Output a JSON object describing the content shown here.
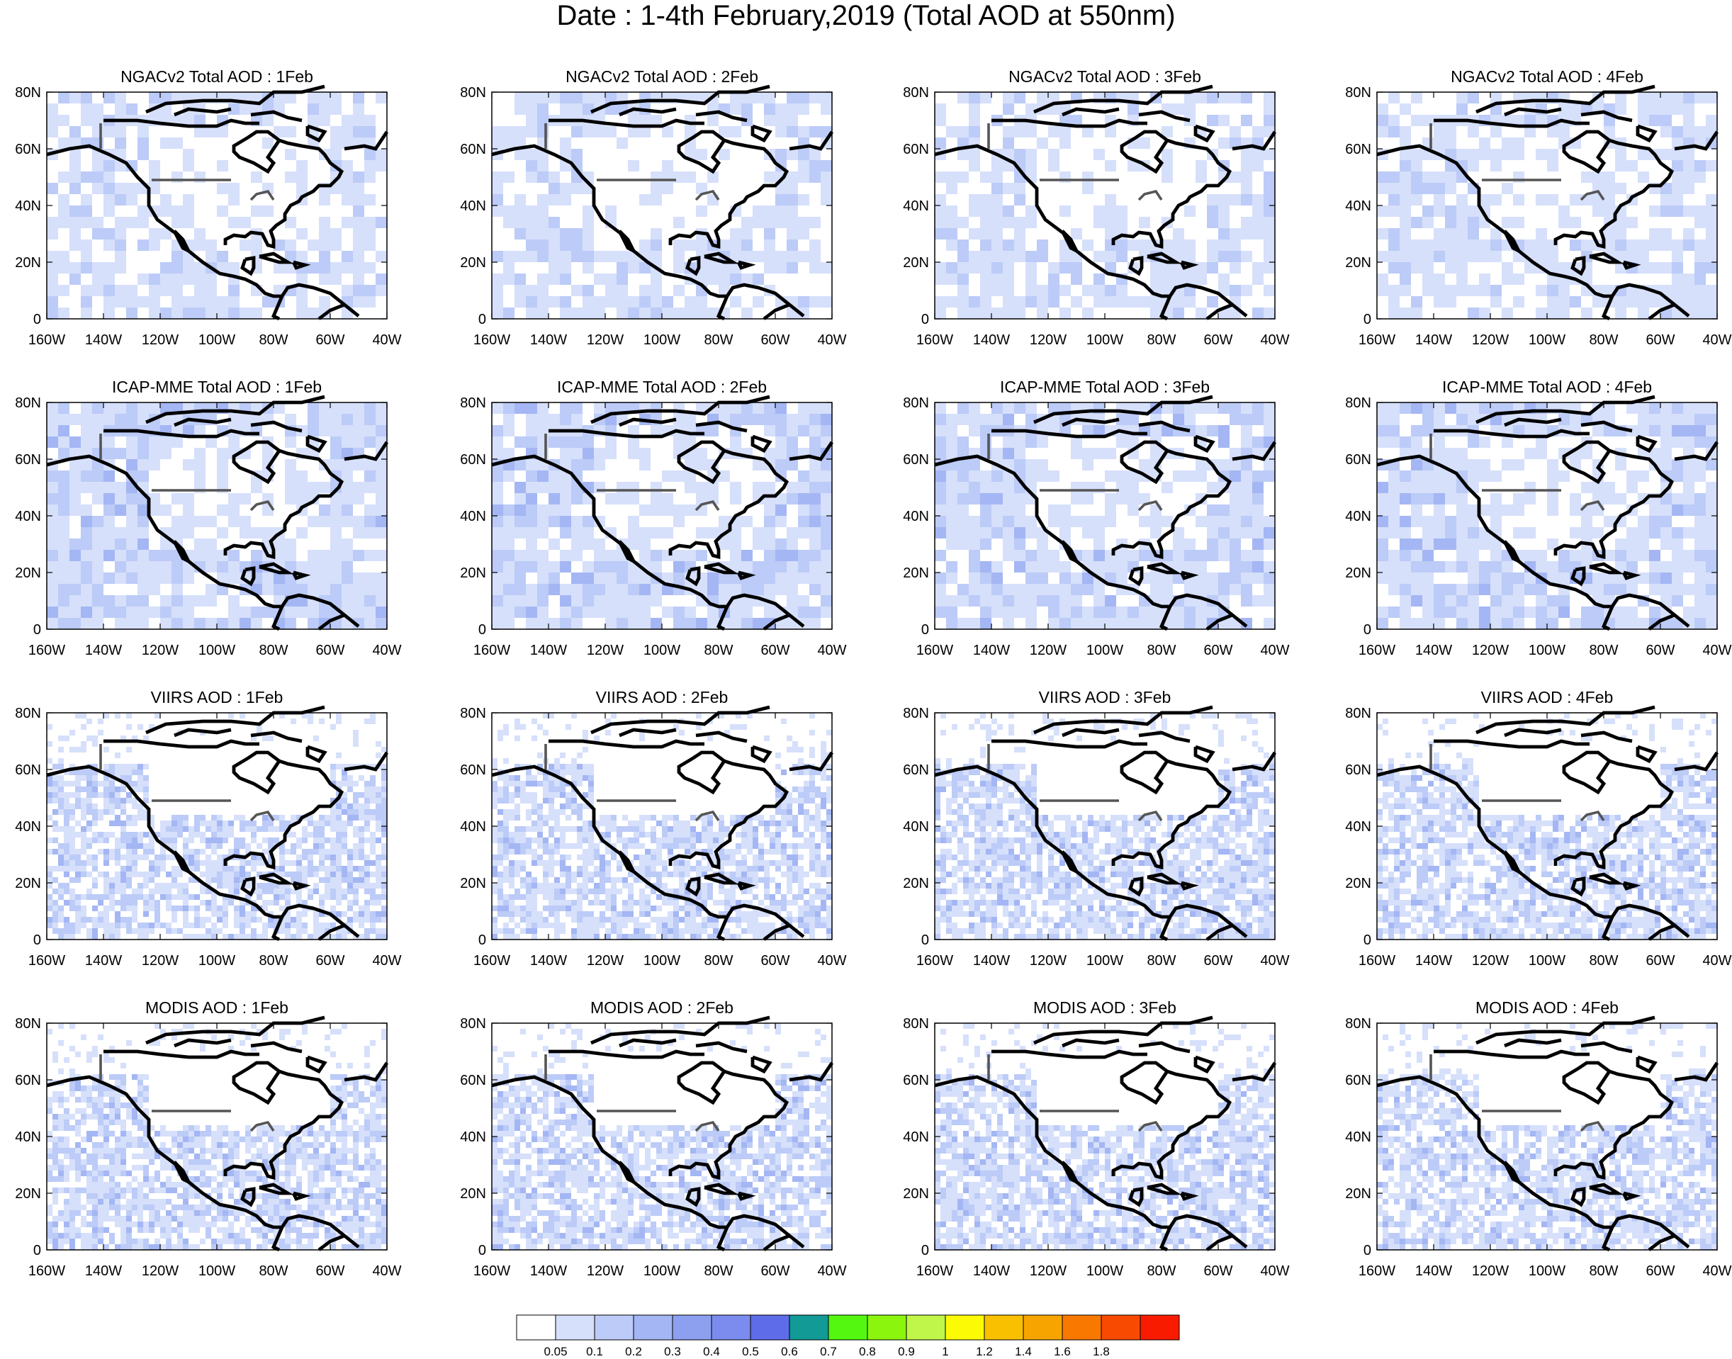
{
  "title": "Date : 1-4th February,2019 (Total AOD at 550nm)",
  "panel_titles": [
    [
      "NGACv2 Total AOD : 1Feb",
      "NGACv2 Total AOD : 2Feb",
      "NGACv2 Total AOD : 3Feb",
      "NGACv2 Total AOD : 4Feb"
    ],
    [
      "ICAP-MME Total AOD : 1Feb",
      "ICAP-MME Total AOD : 2Feb",
      "ICAP-MME Total AOD : 3Feb",
      "ICAP-MME Total AOD : 4Feb"
    ],
    [
      "VIIRS AOD : 1Feb",
      "VIIRS AOD : 2Feb",
      "VIIRS AOD : 3Feb",
      "VIIRS AOD : 4Feb"
    ],
    [
      "MODIS AOD : 1Feb",
      "MODIS AOD : 2Feb",
      "MODIS AOD : 3Feb",
      "MODIS AOD : 4Feb"
    ]
  ],
  "lat_labels": [
    "80N",
    "60N",
    "40N",
    "20N",
    "0"
  ],
  "lon_labels": [
    "160W",
    "140W",
    "120W",
    "100W",
    "80W",
    "60W",
    "40W"
  ],
  "colorbar": {
    "colors": [
      "#ffffff",
      "#d6e0fb",
      "#bccbf7",
      "#a4b6f3",
      "#8da0f0",
      "#7c8bee",
      "#5e6cea",
      "#2f6ff3",
      "#129a96",
      "#53f70f",
      "#8bf50e",
      "#c0f54a",
      "#fcfb05",
      "#f9c000",
      "#f8a400",
      "#f97800",
      "#f84a00",
      "#f91b00"
    ],
    "labels": [
      "0.05",
      "0.1",
      "0.2",
      "0.3",
      "0.4",
      "0.5",
      "0.6",
      "0.7",
      "0.8",
      "0.9",
      "1",
      "1.2",
      "1.4",
      "1.6",
      "1.8"
    ]
  }
}
